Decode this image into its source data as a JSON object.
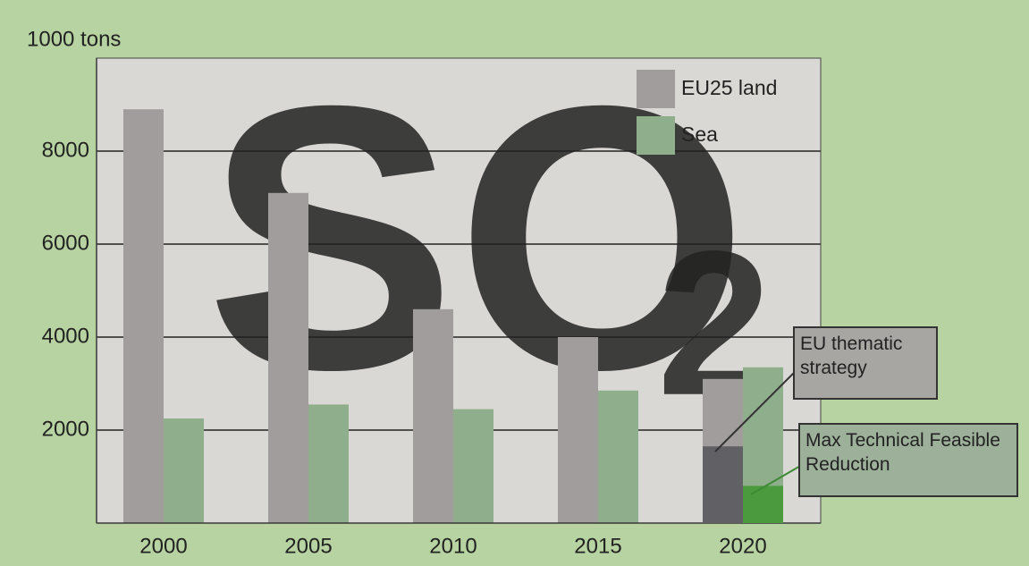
{
  "chart_data": {
    "type": "bar",
    "y_label": "1000 tons",
    "categories": [
      "2000",
      "2005",
      "2010",
      "2015",
      "2020"
    ],
    "series": [
      {
        "name": "EU25 land",
        "color": "#a19d9c",
        "values": [
          8900,
          7100,
          4600,
          4000,
          3100
        ]
      },
      {
        "name": "Sea",
        "color": "#8fae8c",
        "values": [
          2250,
          2550,
          2450,
          2850,
          3350
        ]
      }
    ],
    "ylim": [
      0,
      10000
    ],
    "yticks": [
      2000,
      4000,
      6000,
      8000
    ],
    "grid": true,
    "legend": "top-right",
    "watermark": {
      "text": "SO",
      "subscript": "2"
    },
    "annotations": [
      {
        "text": "EU thematic strategy",
        "color": "#a8a6a3"
      },
      {
        "text": "Max Technical Feasible Reduction",
        "color": "#9db09a",
        "values": [
          1650,
          800
        ],
        "colors": [
          "#616064",
          "#4c9a3e"
        ]
      }
    ]
  }
}
